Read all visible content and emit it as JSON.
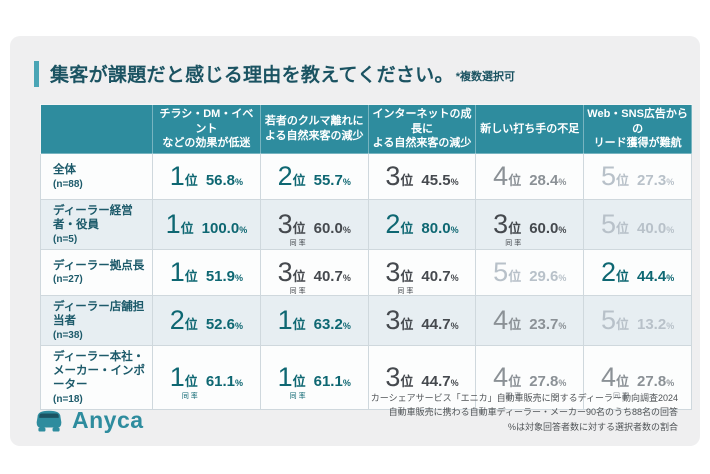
{
  "title": {
    "text": "集客が課題だと感じる理由を教えてください。",
    "note": "*複数選択可"
  },
  "chart_data": {
    "type": "table",
    "title": "集客が課題だと感じる理由を教えてください。",
    "subtitle": "*複数選択可",
    "rank_unit": "位",
    "tie_label": "同率",
    "percent_unit": "%",
    "columns": [
      "チラシ・DM・イベント\nなどの効果が低迷",
      "若者のクルマ離れに\nよる自然来客の減少",
      "インターネットの成長に\nよる自然来客の減少",
      "新しい打ち手の不足",
      "Web・SNS広告からの\nリード獲得が難航"
    ],
    "rows": [
      {
        "label": "全体",
        "n": "(n=88)",
        "cells": [
          {
            "rank": 1,
            "pct": 56.8,
            "tie": false
          },
          {
            "rank": 2,
            "pct": 55.7,
            "tie": false
          },
          {
            "rank": 3,
            "pct": 45.5,
            "tie": false
          },
          {
            "rank": 4,
            "pct": 28.4,
            "tie": false
          },
          {
            "rank": 5,
            "pct": 27.3,
            "tie": false
          }
        ]
      },
      {
        "label": "ディーラー経営者・役員",
        "n": "(n=5)",
        "cells": [
          {
            "rank": 1,
            "pct": 100.0,
            "tie": false
          },
          {
            "rank": 3,
            "pct": 60.0,
            "tie": true
          },
          {
            "rank": 2,
            "pct": 80.0,
            "tie": false
          },
          {
            "rank": 3,
            "pct": 60.0,
            "tie": true
          },
          {
            "rank": 5,
            "pct": 40.0,
            "tie": false
          }
        ]
      },
      {
        "label": "ディーラー拠点長",
        "n": "(n=27)",
        "cells": [
          {
            "rank": 1,
            "pct": 51.9,
            "tie": false
          },
          {
            "rank": 3,
            "pct": 40.7,
            "tie": true
          },
          {
            "rank": 3,
            "pct": 40.7,
            "tie": true
          },
          {
            "rank": 5,
            "pct": 29.6,
            "tie": false
          },
          {
            "rank": 2,
            "pct": 44.4,
            "tie": false
          }
        ]
      },
      {
        "label": "ディーラー店舗担当者",
        "n": "(n=38)",
        "cells": [
          {
            "rank": 2,
            "pct": 52.6,
            "tie": false
          },
          {
            "rank": 1,
            "pct": 63.2,
            "tie": false
          },
          {
            "rank": 3,
            "pct": 44.7,
            "tie": false
          },
          {
            "rank": 4,
            "pct": 23.7,
            "tie": false
          },
          {
            "rank": 5,
            "pct": 13.2,
            "tie": false
          }
        ]
      },
      {
        "label": "ディーラー本社・\nメーカー・インポーター",
        "n": "(n=18)",
        "cells": [
          {
            "rank": 1,
            "pct": 61.1,
            "tie": true
          },
          {
            "rank": 1,
            "pct": 61.1,
            "tie": true
          },
          {
            "rank": 3,
            "pct": 44.7,
            "tie": false
          },
          {
            "rank": 4,
            "pct": 27.8,
            "tie": true
          },
          {
            "rank": 4,
            "pct": 27.8,
            "tie": true
          }
        ]
      }
    ]
  },
  "footer": {
    "logo_text": "Anyca",
    "logo_icon": "car-icon",
    "notes": [
      "カーシェアサービス「エニカ」自動車販売に関するディーラー動向調査2024",
      "自動車販売に携わる自動車ディーラー・メーカー90名のうち88名の回答",
      "%は対象回答者数に対する選択者数の割合"
    ]
  },
  "colors": {
    "header_teal": "#2e8c9e",
    "accent_bar": "#4aa5b5",
    "title_text": "#1b5362",
    "row_label": "#1c5a6a",
    "rank_top": "#0e6772",
    "rank_3": "#45494e",
    "rank_4": "#8b9196",
    "rank_5": "#b8c1c9"
  }
}
